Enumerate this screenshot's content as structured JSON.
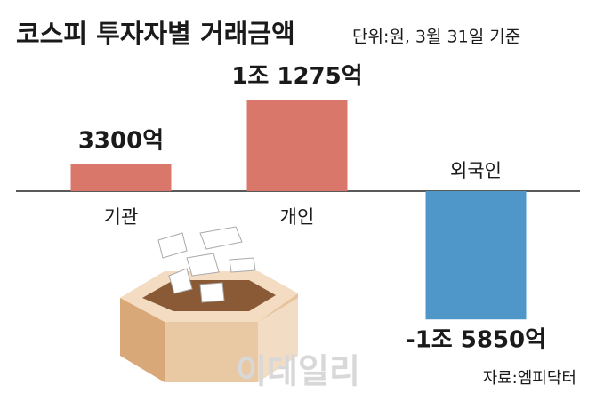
{
  "chart_data": {
    "type": "bar",
    "title": "코스피 투자자별 거래금액",
    "subtitle": "단위:원, 3월 31일 기준",
    "categories": [
      "기관",
      "개인",
      "외국인"
    ],
    "values": [
      3300,
      11275,
      -15850
    ],
    "value_labels": [
      "3300억",
      "1조 1275억",
      "-1조 5850억"
    ],
    "colors": [
      "#d9776a",
      "#d9776a",
      "#4f97c8"
    ],
    "source": "자료:엠피닥터",
    "watermark": "이데일리"
  }
}
